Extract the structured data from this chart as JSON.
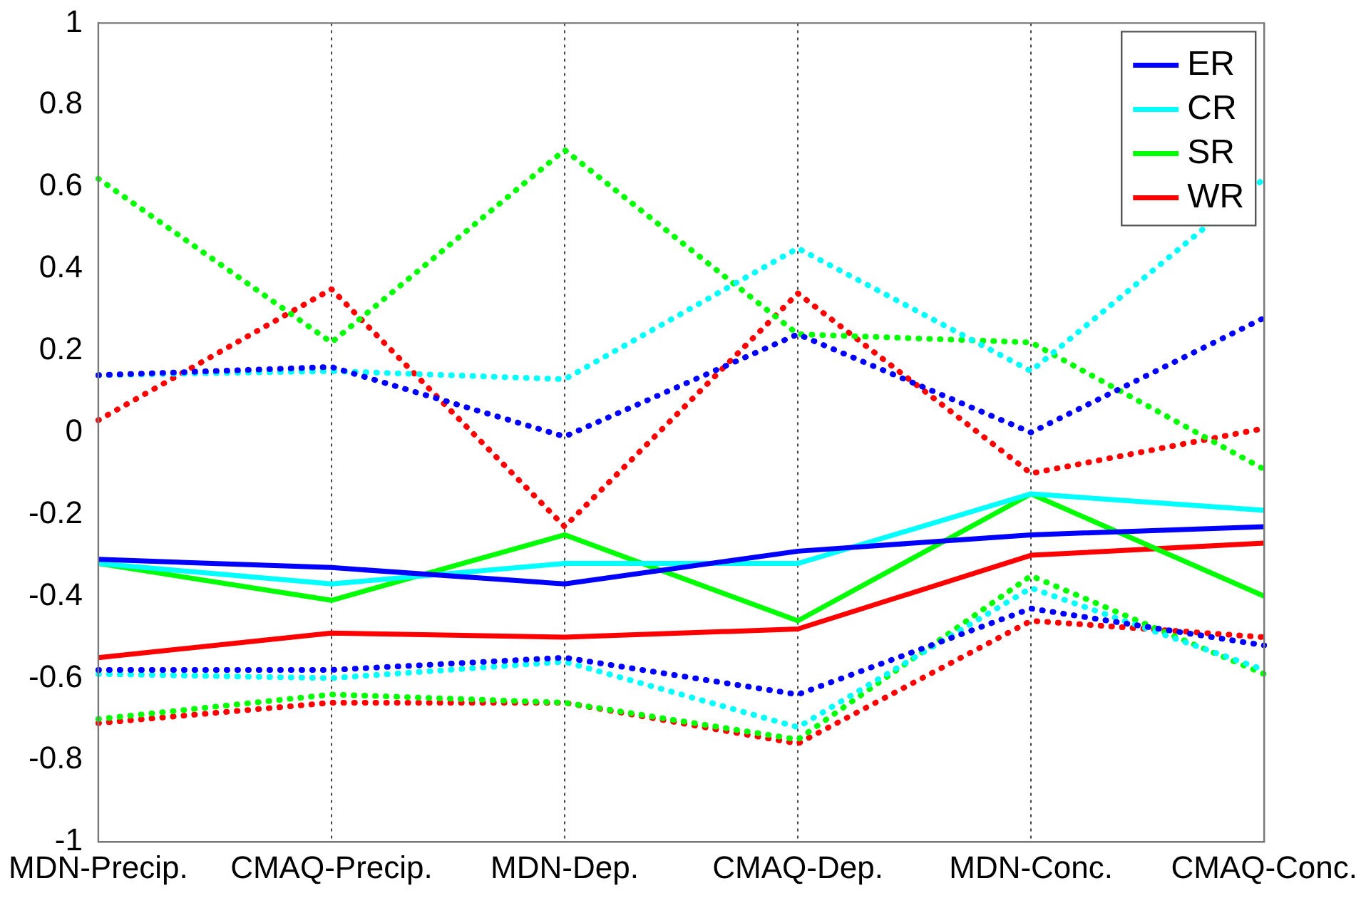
{
  "chart_data": {
    "type": "line",
    "categories": [
      "MDN-Precip.",
      "CMAQ-Precip.",
      "MDN-Dep.",
      "CMAQ-Dep.",
      "MDN-Conc.",
      "CMAQ-Conc."
    ],
    "ylim": [
      -1,
      1
    ],
    "yticks": [
      -1,
      -0.8,
      -0.6,
      -0.4,
      -0.2,
      0,
      0.2,
      0.4,
      0.6,
      0.8,
      1
    ],
    "grid": "x",
    "legend": "top right",
    "marker": "none",
    "line_style": "solid",
    "series": [
      {
        "name": "ER",
        "color": "#0000ff",
        "values": [
          -0.31,
          -0.33,
          -0.37,
          -0.29,
          -0.25,
          -0.23
        ]
      },
      {
        "name": "CR",
        "color": "#00ffff",
        "values": [
          -0.32,
          -0.37,
          -0.32,
          -0.32,
          -0.15,
          -0.19
        ]
      },
      {
        "name": "SR",
        "color": "#00ff00",
        "values": [
          -0.32,
          -0.41,
          -0.25,
          -0.46,
          -0.15,
          -0.4
        ]
      },
      {
        "name": "WR",
        "color": "#ff0000",
        "values": [
          -0.55,
          -0.49,
          -0.5,
          -0.48,
          -0.3,
          -0.27
        ]
      },
      {
        "color": "#0000ff",
        "line_style": "dotted",
        "values": [
          0.14,
          0.16,
          -0.01,
          0.24,
          0.0,
          0.28
        ]
      },
      {
        "color": "#00ffff",
        "line_style": "dotted",
        "values": [
          0.14,
          0.15,
          0.13,
          0.45,
          0.15,
          0.62
        ]
      },
      {
        "color": "#00ff00",
        "line_style": "dotted",
        "values": [
          0.62,
          0.22,
          0.69,
          0.24,
          0.22,
          -0.09
        ]
      },
      {
        "color": "#ff0000",
        "line_style": "dotted",
        "values": [
          0.03,
          0.35,
          -0.23,
          0.34,
          -0.1,
          0.01
        ]
      },
      {
        "color": "#0000ff",
        "line_style": "dotted",
        "values": [
          -0.58,
          -0.58,
          -0.55,
          -0.64,
          -0.43,
          -0.52
        ]
      },
      {
        "color": "#00ffff",
        "line_style": "dotted",
        "values": [
          -0.59,
          -0.6,
          -0.56,
          -0.72,
          -0.38,
          -0.58
        ]
      },
      {
        "color": "#00ff00",
        "line_style": "dotted",
        "values": [
          -0.7,
          -0.64,
          -0.66,
          -0.75,
          -0.35,
          -0.59
        ]
      },
      {
        "color": "#ff0000",
        "line_style": "dotted",
        "values": [
          -0.71,
          -0.66,
          -0.66,
          -0.76,
          -0.46,
          -0.5
        ]
      }
    ]
  }
}
